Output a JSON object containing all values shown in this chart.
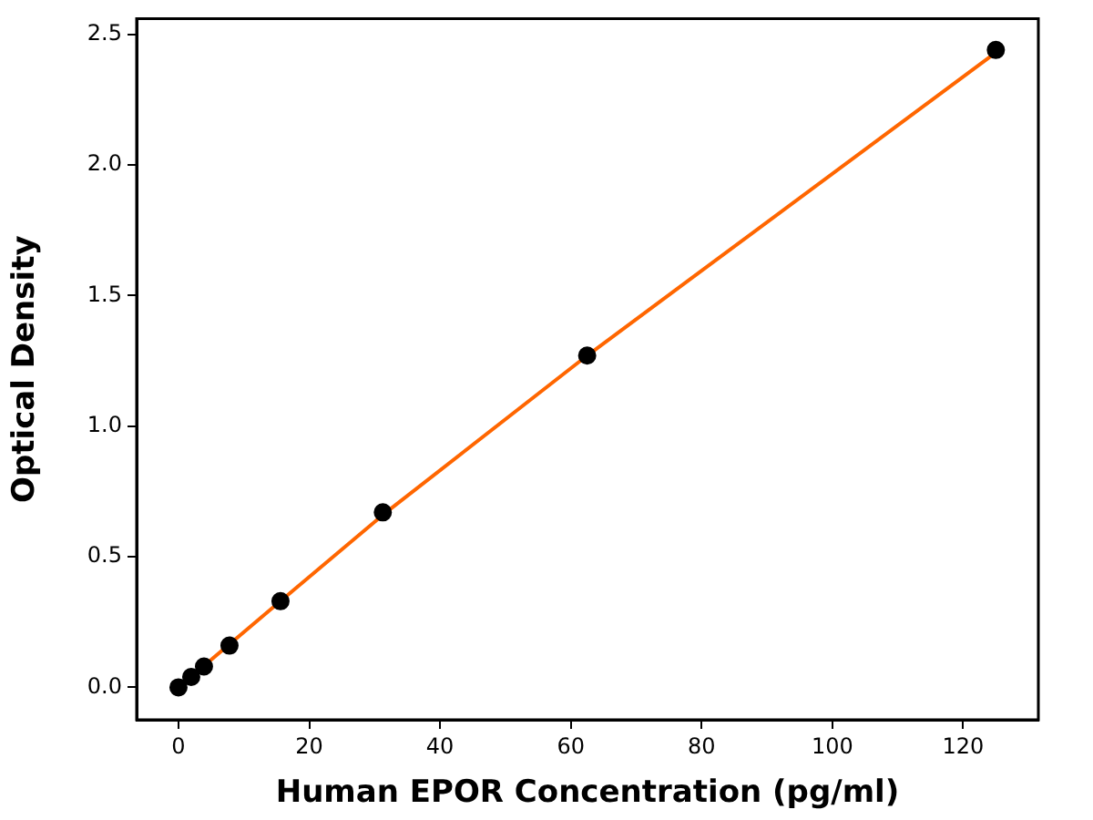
{
  "chart_data": {
    "type": "scatter",
    "xlabel": "Human EPOR Concentration (pg/ml)",
    "ylabel": "Optical Density",
    "xlim": [
      -6.4,
      131.5
    ],
    "xticks": [
      0,
      20,
      40,
      60,
      80,
      100,
      120
    ],
    "ylim": [
      -0.124,
      2.56
    ],
    "yticks": [
      {
        "value": 0,
        "label": "0.0"
      },
      0.5,
      {
        "value": 1,
        "label": "1.0"
      },
      1.5,
      {
        "value": 2,
        "label": "2.0"
      },
      2.5
    ],
    "grid": false,
    "legend": false,
    "marker": "circle",
    "series": [
      {
        "type": "scatter",
        "color": "#000000",
        "x": [
          0,
          1.95,
          3.9,
          7.8,
          15.6,
          31.25,
          62.5,
          125
        ],
        "values": [
          0.0,
          0.04,
          0.08,
          0.16,
          0.33,
          0.67,
          1.27,
          2.44
        ]
      },
      {
        "type": "line",
        "color": "#ff6600",
        "x": [
          0,
          15.6,
          31.25,
          62.5,
          125
        ],
        "values": [
          0.0,
          0.33,
          0.66,
          1.27,
          2.43
        ],
        "marker": "none",
        "line_style": "solid"
      }
    ]
  }
}
